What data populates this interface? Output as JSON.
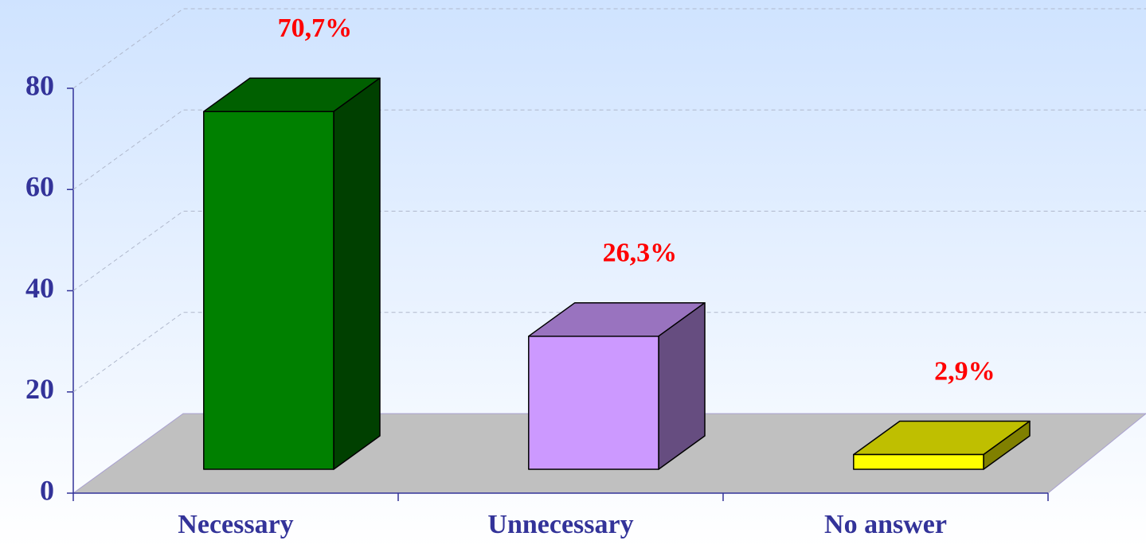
{
  "chart_data": {
    "type": "bar3d",
    "categories": [
      "Necessary",
      "Unnecessary",
      "No answer"
    ],
    "values": [
      70.7,
      26.3,
      2.9
    ],
    "value_labels": [
      "70,7%",
      "26,3%",
      "2,9%"
    ],
    "colors": [
      "#008000",
      "#cc99ff",
      "#ffff00"
    ],
    "ylim": [
      0,
      80
    ],
    "yticks": [
      0,
      20,
      40,
      60,
      80
    ],
    "grid": true
  }
}
